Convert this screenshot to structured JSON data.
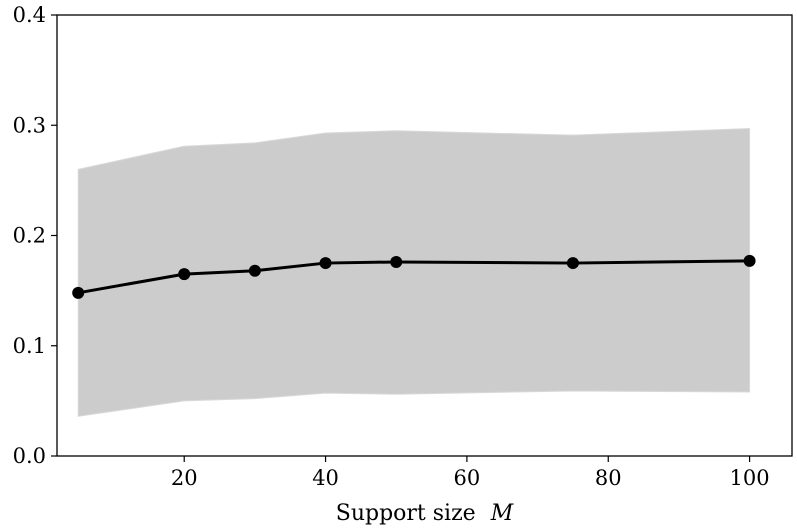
{
  "chart_data": {
    "type": "line",
    "title": "",
    "xlabel": "Support size",
    "xlabel_symbol": "M",
    "ylabel": "",
    "xlim": [
      2,
      106
    ],
    "ylim": [
      0.0,
      0.4
    ],
    "xticks": [
      20,
      40,
      60,
      80,
      100
    ],
    "xtick_labels": [
      "20",
      "40",
      "60",
      "80",
      "100"
    ],
    "yticks": [
      0.0,
      0.1,
      0.2,
      0.3,
      0.4
    ],
    "ytick_labels": [
      "0.0",
      "0.1",
      "0.2",
      "0.3",
      "0.4"
    ],
    "grid": false,
    "legend": "none",
    "series": [
      {
        "x": [
          5,
          20,
          30,
          40,
          50,
          75,
          100
        ],
        "y": [
          0.148,
          0.165,
          0.168,
          0.175,
          0.176,
          0.175,
          0.177
        ],
        "color": "#000000",
        "marker": "circle"
      }
    ],
    "band": {
      "x": [
        5,
        20,
        30,
        40,
        50,
        75,
        100
      ],
      "lower": [
        0.036,
        0.05,
        0.052,
        0.057,
        0.056,
        0.059,
        0.058
      ],
      "upper": [
        0.26,
        0.281,
        0.284,
        0.293,
        0.295,
        0.291,
        0.297
      ],
      "color": "#cccccc"
    }
  }
}
